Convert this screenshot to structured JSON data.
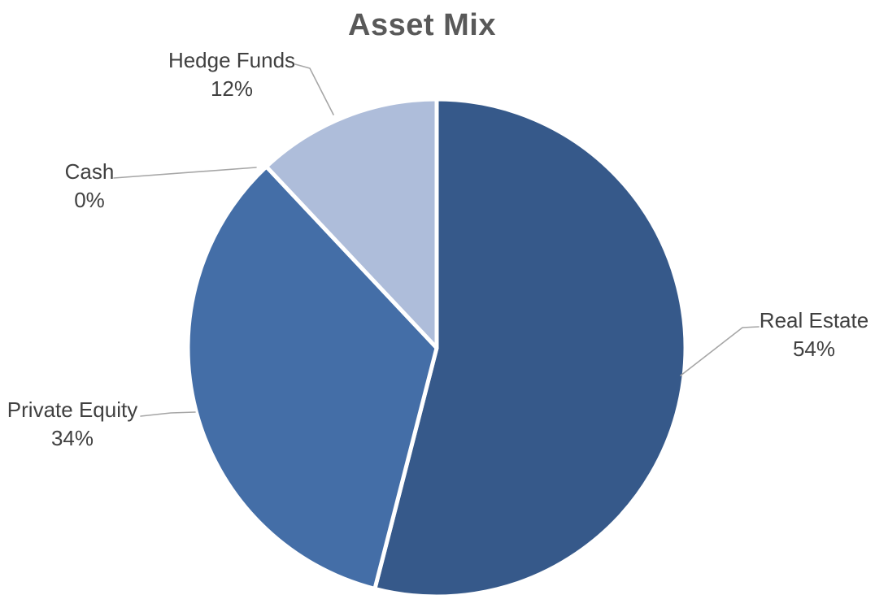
{
  "chart_data": {
    "type": "pie",
    "title": "Asset Mix",
    "unit": "%",
    "start_angle_deg": 0,
    "direction": "clockwise",
    "legend": "none",
    "label_style": "outside-with-leader-lines",
    "background_color": "#ffffff",
    "title_color": "#595959",
    "label_color": "#404040",
    "leader_line_color": "#a6a6a6",
    "slices": [
      {
        "label": "Real Estate",
        "value": 54,
        "pct_label": "54%",
        "color": "#36598A"
      },
      {
        "label": "Private Equity",
        "value": 34,
        "pct_label": "34%",
        "color": "#446EA7"
      },
      {
        "label": "Cash",
        "value": 0,
        "pct_label": "0%",
        "color": null
      },
      {
        "label": "Hedge Funds",
        "value": 12,
        "pct_label": "12%",
        "color": "#AEBDDA"
      }
    ]
  }
}
